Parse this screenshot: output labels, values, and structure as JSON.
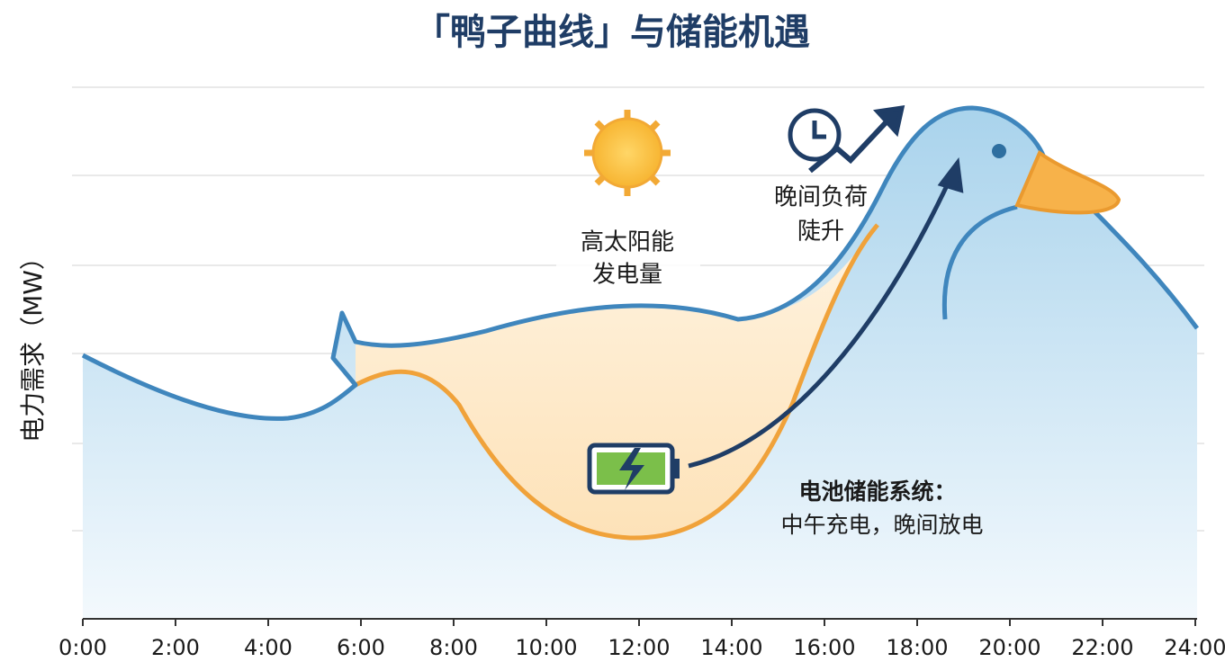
{
  "title": "「鸭子曲线」与储能机遇",
  "y_axis_label": "电力需求（MW）",
  "x_ticks": [
    "0:00",
    "2:00",
    "4:00",
    "6:00",
    "8:00",
    "10:00",
    "12:00",
    "14:00",
    "16:00",
    "18:00",
    "20:00",
    "22:00",
    "24:00"
  ],
  "annotations": {
    "solar": [
      "高太阳能",
      "发电量"
    ],
    "evening": [
      "晚间负荷",
      "陡升"
    ],
    "storage_title": "电池储能系统：",
    "storage_text": "中午充电，晚间放电"
  }
}
